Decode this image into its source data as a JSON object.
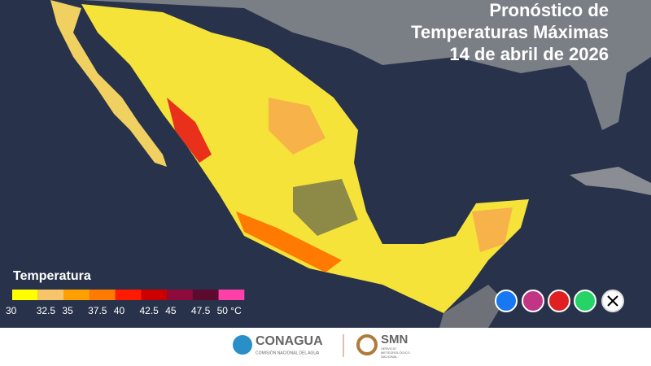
{
  "title": [
    "Pronóstico de",
    "Temperaturas Máximas",
    "14 de abril de 2026"
  ],
  "legend": {
    "title": "Temperatura",
    "colors": [
      "#ffff00",
      "#f7c46a",
      "#ffa000",
      "#ff7a00",
      "#ff1a00",
      "#cc0000",
      "#8e0a3a",
      "#5c0a2e",
      "#ff40a8"
    ],
    "labels": [
      "30",
      "32.5",
      "35",
      "37.5",
      "40",
      "42.5",
      "45",
      "47.5",
      "50 °C"
    ]
  },
  "footer": {
    "conagua": "CONAGUA",
    "conagua_sub": "COMISIÓN NACIONAL DEL AGUA",
    "smn": "SMN",
    "smn_sub": [
      "SERVICIO",
      "METEOROLÓGICO",
      "NACIONAL"
    ]
  }
}
